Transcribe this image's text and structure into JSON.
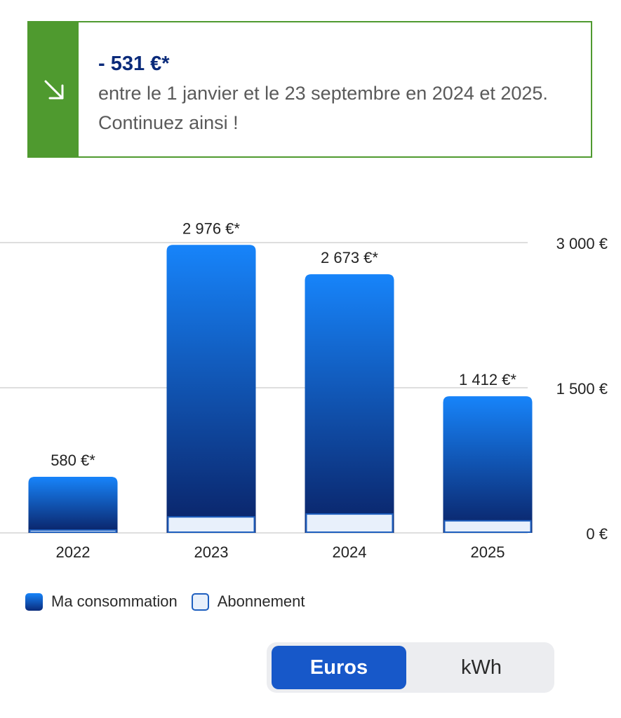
{
  "banner": {
    "amount": "- 531 €*",
    "message": "entre le 1 janvier et le 23 septembre en 2024 et 2025. Continuez ainsi !",
    "icon": "arrow-down-right-icon",
    "accent_color": "#4f9a2f"
  },
  "chart_data": {
    "type": "bar",
    "categories": [
      "2022",
      "2023",
      "2024",
      "2025"
    ],
    "series": [
      {
        "name": "Abonnement",
        "values": [
          15,
          165,
          195,
          125
        ],
        "color": "#e8f0fb"
      },
      {
        "name": "Ma consommation",
        "values": [
          565,
          2811,
          2478,
          1287
        ],
        "color": "#1784fa"
      }
    ],
    "totals": [
      580,
      2976,
      2673,
      1412
    ],
    "data_labels": [
      "580 €*",
      "2 976 €*",
      "2 673 €*",
      "1 412 €*"
    ],
    "y_ticks": [
      0,
      1500,
      3000
    ],
    "y_tick_labels": [
      "0 €",
      "1 500 €",
      "3 000 €"
    ],
    "ylim": [
      0,
      3000
    ],
    "y_axis_position": "right",
    "grid": true
  },
  "legend": {
    "consumption_label": "Ma consommation",
    "subscription_label": "Abonnement"
  },
  "toggle": {
    "euros_label": "Euros",
    "kwh_label": "kWh",
    "selected": "Euros"
  }
}
